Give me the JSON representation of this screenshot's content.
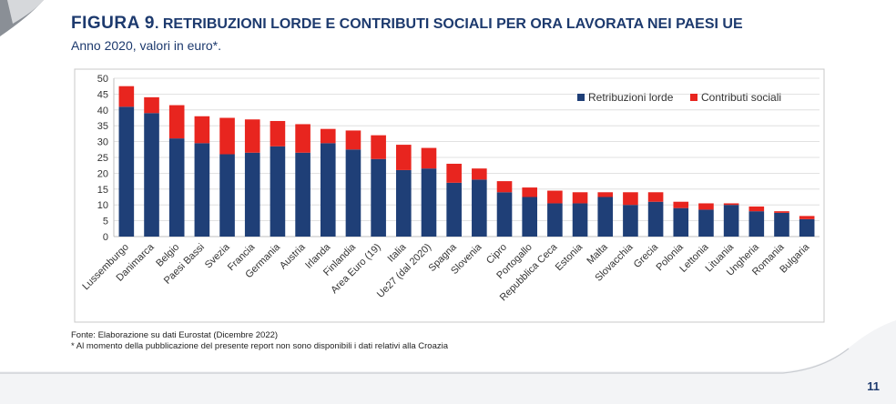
{
  "figure": {
    "label": "FIGURA 9",
    "title": ". RETRIBUZIONI LORDE E CONTRIBUTI SOCIALI PER ORA LAVORATA NEI PAESI UE",
    "subtitle": "Anno 2020, valori in euro*."
  },
  "notes": {
    "source": "Fonte: Elaborazione su dati Eurostat (Dicembre 2022)",
    "footnote": "* Al momento della pubblicazione del presente report non sono disponibili i dati relativi alla Croazia"
  },
  "page_number": "11",
  "colors": {
    "title": "#1d3a6e",
    "retribuzioni": "#1f3f77",
    "contributi": "#e8251f"
  },
  "chart_data": {
    "type": "bar",
    "stacked": true,
    "categories": [
      "Lussemburgo",
      "Danimarca",
      "Belgio",
      "Paesi Bassi",
      "Svezia",
      "Francia",
      "Germania",
      "Austria",
      "Irlanda",
      "Finlandia",
      "Area Euro (19)",
      "Italia",
      "Ue27 (dal 2020)",
      "Spagna",
      "Slovenia",
      "Cipro",
      "Portogallo",
      "Repubblica Ceca",
      "Estonia",
      "Malta",
      "Slovacchia",
      "Grecia",
      "Polonia",
      "Lettonia",
      "Lituania",
      "Ungheria",
      "Romania",
      "Bulgaria"
    ],
    "series": [
      {
        "name": "Retribuzioni lorde",
        "color": "#1f3f77",
        "values": [
          41,
          39,
          31,
          29.5,
          26,
          26.5,
          28.5,
          26.5,
          29.5,
          27.5,
          24.5,
          21,
          21.5,
          17,
          18,
          14,
          12.5,
          10.5,
          10.5,
          12.5,
          10,
          11,
          9,
          8.5,
          10,
          8,
          7.5,
          5.5
        ]
      },
      {
        "name": "Contributi sociali",
        "color": "#e8251f",
        "values": [
          6.5,
          5,
          10.5,
          8.5,
          11.5,
          10.5,
          8,
          9,
          4.5,
          6,
          7.5,
          8,
          6.5,
          6,
          3.5,
          3.5,
          3,
          4,
          3.5,
          1.5,
          4,
          3,
          2,
          2,
          0.5,
          1.5,
          0.5,
          1
        ]
      }
    ],
    "ylim": [
      0,
      50
    ],
    "yticks": [
      0,
      5,
      10,
      15,
      20,
      25,
      30,
      35,
      40,
      45,
      50
    ],
    "grid": true,
    "legend": "top-right"
  }
}
